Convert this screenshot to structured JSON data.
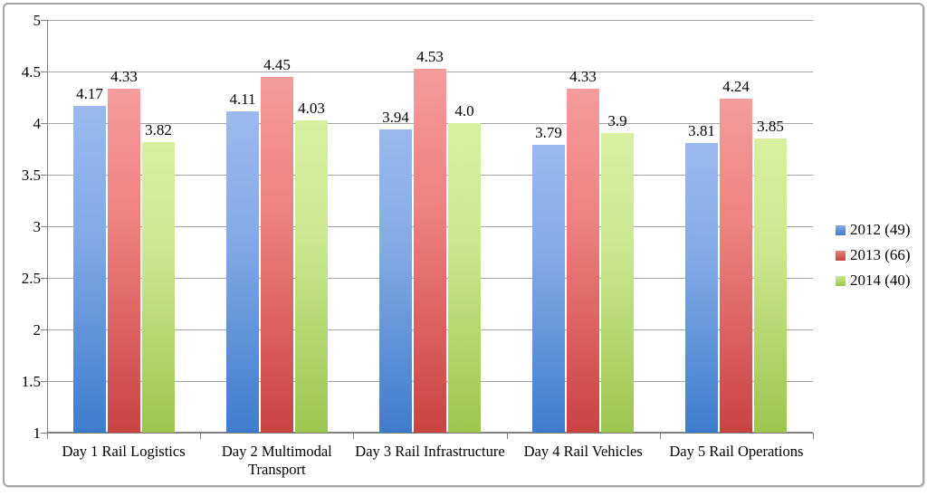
{
  "chart_data": {
    "type": "bar",
    "title": "",
    "xlabel": "",
    "ylabel": "",
    "categories": [
      "Day 1 Rail Logistics",
      "Day 2 Multimodal Transport",
      "Day 3 Rail Infrastructure",
      "Day 4 Rail Vehicles",
      "Day 5 Rail Operations"
    ],
    "series": [
      {
        "name": "2012 (49)",
        "values": [
          4.17,
          4.11,
          3.94,
          3.79,
          3.81
        ],
        "labels": [
          "4.17",
          "4.11",
          "3.94",
          "3.79",
          "3.81"
        ],
        "color_top": "#9bb9ee",
        "color_mid": "#84abe6",
        "color_bottom": "#3f7ccd"
      },
      {
        "name": "2013 (66)",
        "values": [
          4.33,
          4.45,
          4.53,
          4.33,
          4.24
        ],
        "labels": [
          "4.33",
          "4.45",
          "4.53",
          "4.33",
          "4.24"
        ],
        "color_top": "#f49c9c",
        "color_mid": "#ef8181",
        "color_bottom": "#c94341"
      },
      {
        "name": "2014 (40)",
        "values": [
          3.82,
          4.03,
          4.0,
          3.9,
          3.85
        ],
        "labels": [
          "3.82",
          "4.03",
          "4.0",
          "3.9",
          "3.85"
        ],
        "color_top": "#d8efa2",
        "color_mid": "#cbe88f",
        "color_bottom": "#9cc54f"
      }
    ],
    "ylim": [
      1,
      5
    ],
    "y_ticks": [
      "5",
      "4.5",
      "4",
      "3.5",
      "3",
      "2.5",
      "2",
      "1.5",
      "1"
    ],
    "grid": true,
    "legend_position": "right",
    "data_labels_position": "outside-end"
  },
  "colors": {
    "gridline": "#a6a6a6",
    "axis": "#808080",
    "text": "#000000",
    "frame_border": "#a6a6a6",
    "background": "#ffffff"
  }
}
